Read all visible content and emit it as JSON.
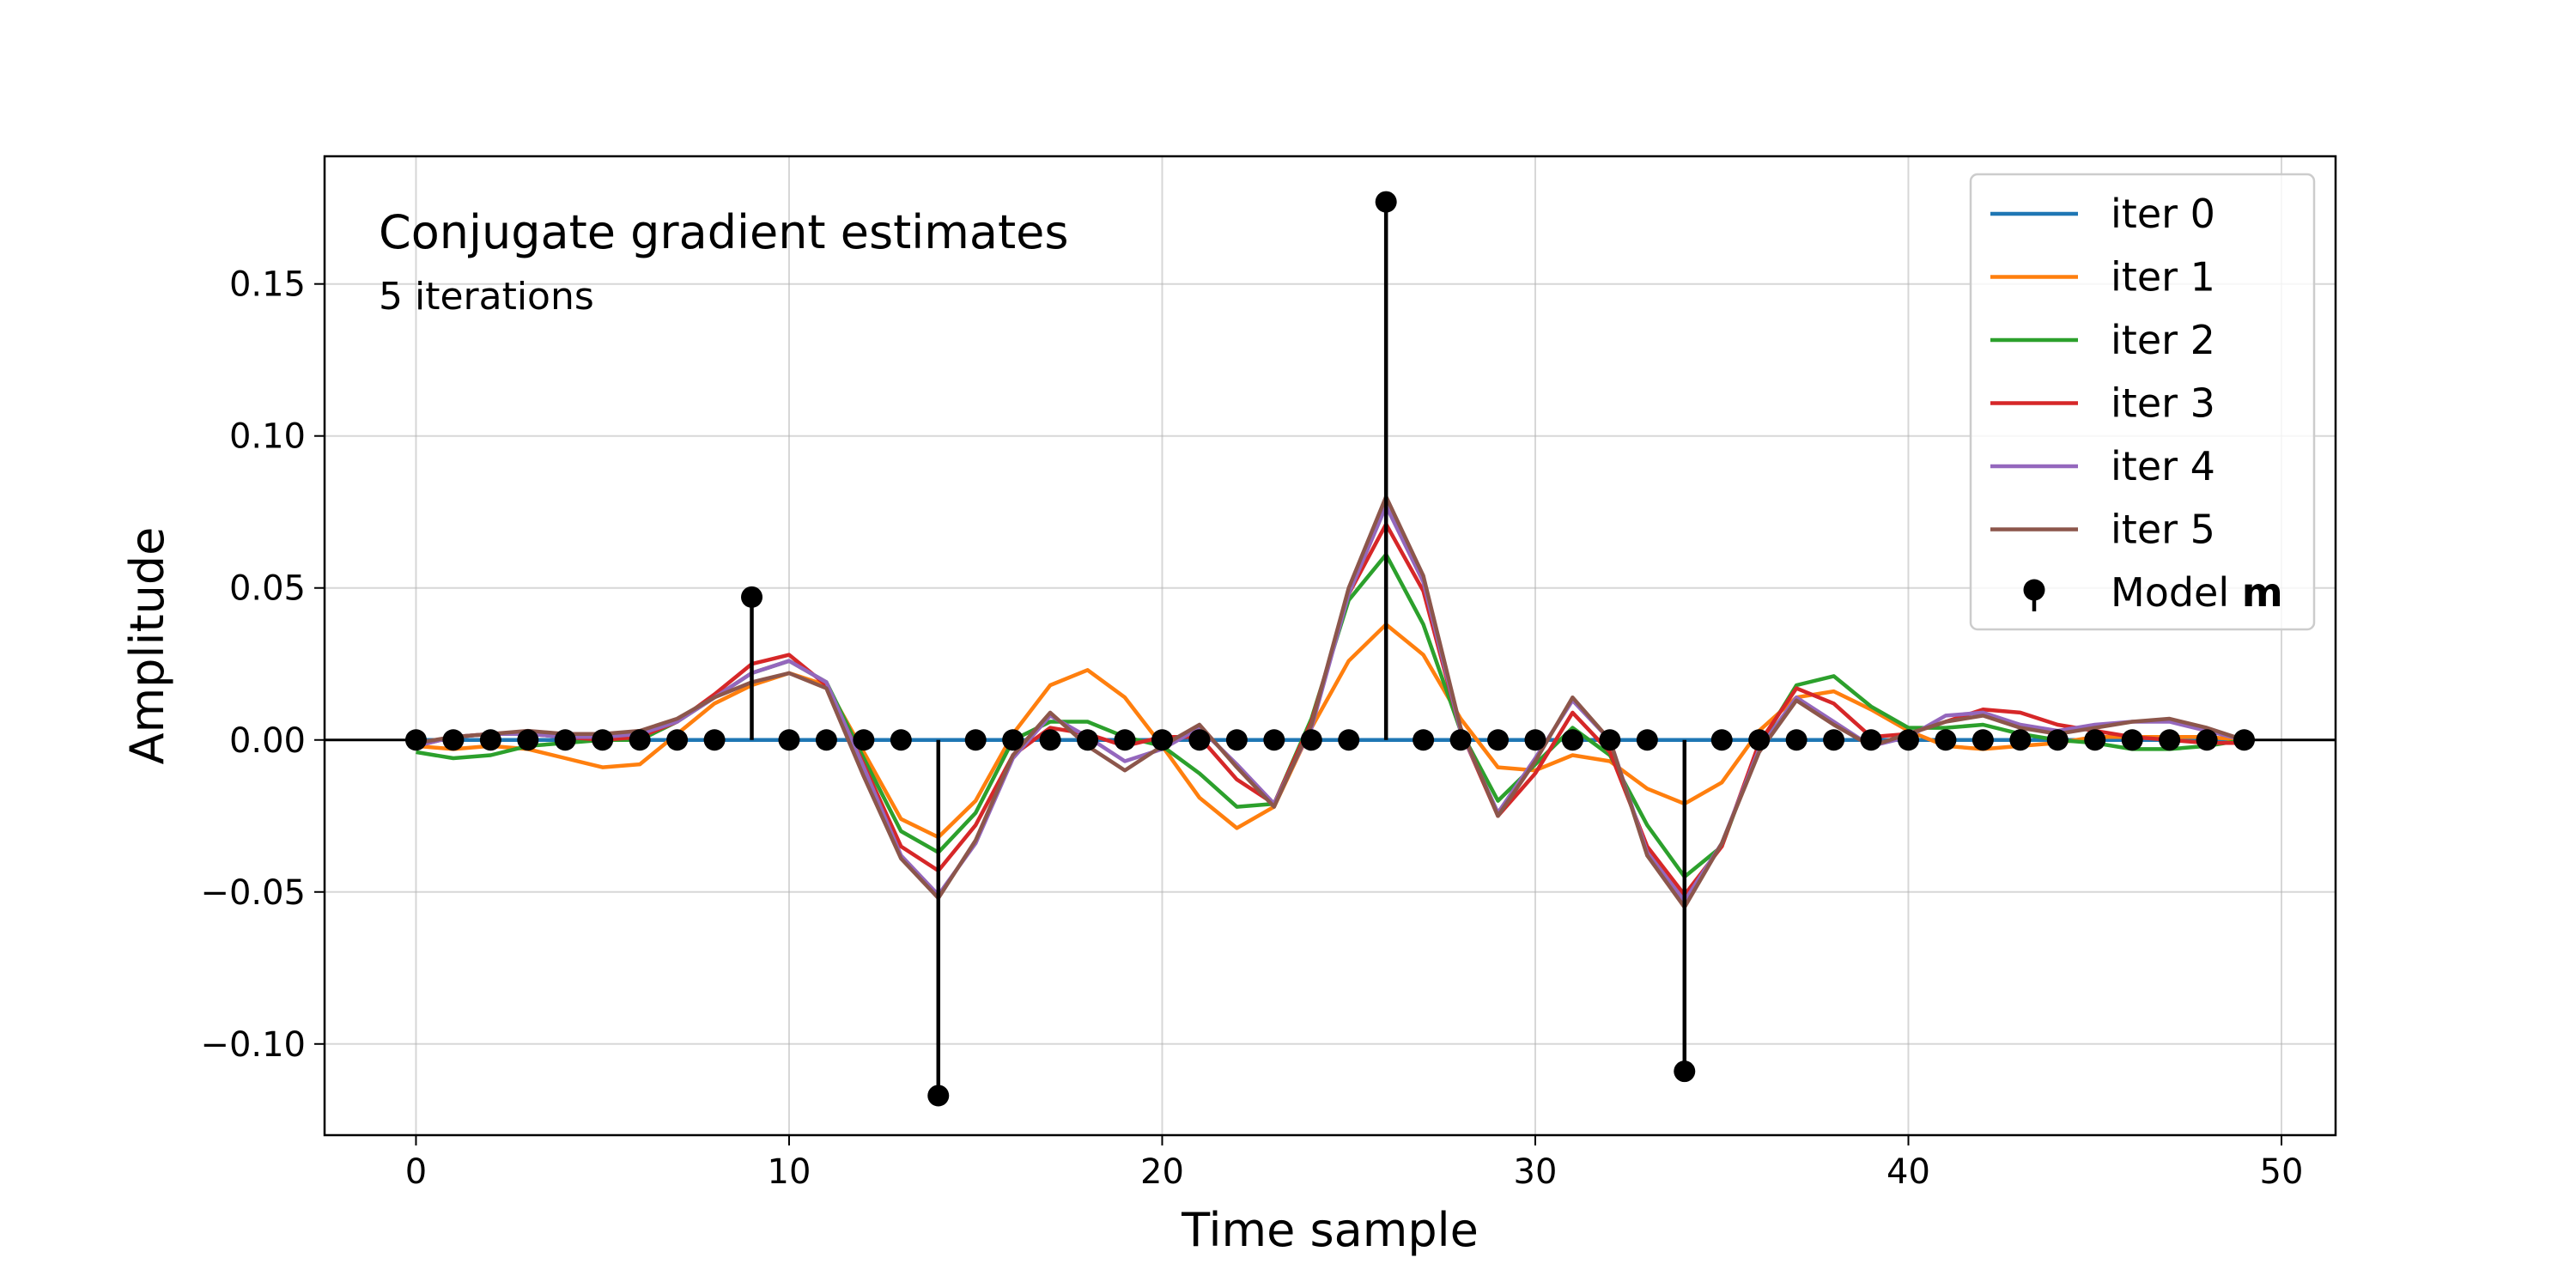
{
  "chart_data": {
    "type": "line",
    "title": "Conjugate gradient estimates",
    "subtitle": "5 iterations",
    "xlabel": "Time sample",
    "ylabel": "Amplitude",
    "xlim": [
      -2.45,
      51.45
    ],
    "ylim": [
      -0.13,
      0.192
    ],
    "x_ticks": [
      0,
      10,
      20,
      30,
      40,
      50
    ],
    "x_tick_labels": [
      "0",
      "10",
      "20",
      "30",
      "40",
      "50"
    ],
    "y_ticks": [
      -0.1,
      -0.05,
      0.0,
      0.05,
      0.1,
      0.15
    ],
    "y_tick_labels": [
      "−0.10",
      "−0.05",
      "0.00",
      "0.05",
      "0.10",
      "0.15"
    ],
    "grid": true,
    "legend_position": "top-right",
    "x": [
      0,
      1,
      2,
      3,
      4,
      5,
      6,
      7,
      8,
      9,
      10,
      11,
      12,
      13,
      14,
      15,
      16,
      17,
      18,
      19,
      20,
      21,
      22,
      23,
      24,
      25,
      26,
      27,
      28,
      29,
      30,
      31,
      32,
      33,
      34,
      35,
      36,
      37,
      38,
      39,
      40,
      41,
      42,
      43,
      44,
      45,
      46,
      47,
      48,
      49
    ],
    "series": [
      {
        "name": "iter 0",
        "color": "#1f77b4",
        "values": [
          0,
          0,
          0,
          0,
          0,
          0,
          0,
          0,
          0,
          0,
          0,
          0,
          0,
          0,
          0,
          0,
          0,
          0,
          0,
          0,
          0,
          0,
          0,
          0,
          0,
          0,
          0,
          0,
          0,
          0,
          0,
          0,
          0,
          0,
          0,
          0,
          0,
          0,
          0,
          0,
          0,
          0,
          0,
          0,
          0,
          0,
          0,
          0,
          0,
          0
        ]
      },
      {
        "name": "iter 1",
        "color": "#ff7f0e",
        "values": [
          -0.002,
          -0.003,
          -0.002,
          -0.003,
          -0.006,
          -0.009,
          -0.008,
          0.002,
          0.012,
          0.018,
          0.022,
          0.018,
          -0.004,
          -0.026,
          -0.032,
          -0.02,
          0.002,
          0.018,
          0.023,
          0.014,
          -0.002,
          -0.019,
          -0.029,
          -0.022,
          0.004,
          0.026,
          0.038,
          0.028,
          0.007,
          -0.009,
          -0.01,
          -0.005,
          -0.007,
          -0.016,
          -0.021,
          -0.014,
          0.003,
          0.014,
          0.016,
          0.01,
          0.003,
          -0.002,
          -0.003,
          -0.002,
          -0.001,
          0.001,
          0.001,
          0.001,
          0.001,
          0
        ]
      },
      {
        "name": "iter 2",
        "color": "#2ca02c",
        "values": [
          -0.004,
          -0.006,
          -0.005,
          -0.002,
          -0.001,
          0,
          0,
          0.006,
          0.014,
          0.022,
          0.026,
          0.019,
          -0.006,
          -0.03,
          -0.037,
          -0.024,
          0,
          0.006,
          0.006,
          0.001,
          -0.002,
          -0.011,
          -0.022,
          -0.021,
          0.007,
          0.046,
          0.061,
          0.038,
          0.003,
          -0.02,
          -0.008,
          0.004,
          -0.005,
          -0.028,
          -0.045,
          -0.035,
          -0.002,
          0.018,
          0.021,
          0.011,
          0.004,
          0.004,
          0.005,
          0.002,
          0,
          -0.001,
          -0.003,
          -0.003,
          -0.002,
          0
        ]
      },
      {
        "name": "iter 3",
        "color": "#d62728",
        "values": [
          -0.002,
          0.001,
          0.002,
          0.002,
          0.001,
          0,
          0.001,
          0.006,
          0.015,
          0.025,
          0.028,
          0.018,
          -0.008,
          -0.035,
          -0.043,
          -0.028,
          -0.005,
          0.004,
          0.002,
          -0.002,
          0.001,
          0.001,
          -0.013,
          -0.021,
          0.006,
          0.048,
          0.071,
          0.049,
          0.003,
          -0.025,
          -0.011,
          0.009,
          -0.004,
          -0.035,
          -0.051,
          -0.035,
          -0.001,
          0.017,
          0.012,
          0.001,
          0.002,
          0.006,
          0.01,
          0.009,
          0.005,
          0.003,
          0.001,
          0,
          -0.001,
          -0.001
        ]
      },
      {
        "name": "iter 4",
        "color": "#9467bd",
        "values": [
          -0.002,
          0.001,
          0.002,
          0.002,
          0.001,
          0.001,
          0.002,
          0.006,
          0.014,
          0.022,
          0.026,
          0.019,
          -0.009,
          -0.038,
          -0.051,
          -0.034,
          -0.006,
          0.008,
          0.001,
          -0.007,
          -0.003,
          0.004,
          -0.008,
          -0.021,
          0.004,
          0.048,
          0.077,
          0.052,
          0.003,
          -0.024,
          -0.006,
          0.013,
          0,
          -0.037,
          -0.053,
          -0.034,
          -0.003,
          0.014,
          0.006,
          -0.002,
          0.001,
          0.008,
          0.009,
          0.005,
          0.003,
          0.005,
          0.006,
          0.006,
          0.003,
          0
        ]
      },
      {
        "name": "iter 5",
        "color": "#8c564b",
        "values": [
          -0.001,
          0.001,
          0.002,
          0.003,
          0.002,
          0.002,
          0.003,
          0.007,
          0.014,
          0.019,
          0.022,
          0.017,
          -0.012,
          -0.039,
          -0.052,
          -0.033,
          -0.005,
          0.009,
          -0.002,
          -0.01,
          -0.002,
          0.005,
          -0.009,
          -0.022,
          0.005,
          0.05,
          0.08,
          0.054,
          0.004,
          -0.025,
          -0.007,
          0.014,
          0,
          -0.038,
          -0.055,
          -0.034,
          -0.004,
          0.013,
          0.005,
          -0.002,
          0.002,
          0.006,
          0.008,
          0.004,
          0.002,
          0.004,
          0.006,
          0.007,
          0.004,
          0
        ]
      }
    ],
    "stem_series": {
      "name": "Model m",
      "name_prefix": "Model ",
      "name_bold": "m",
      "color": "#000000",
      "values": [
        0,
        0,
        0,
        0,
        0,
        0,
        0,
        0,
        0,
        0.047,
        0,
        0,
        0,
        0,
        -0.117,
        0,
        0,
        0,
        0,
        0,
        0,
        0,
        0,
        0,
        0,
        0,
        0.177,
        0,
        0,
        0,
        0,
        0,
        0,
        0,
        -0.109,
        0,
        0,
        0,
        0,
        0,
        0,
        0,
        0,
        0,
        0,
        0,
        0,
        0,
        0,
        0
      ]
    }
  }
}
